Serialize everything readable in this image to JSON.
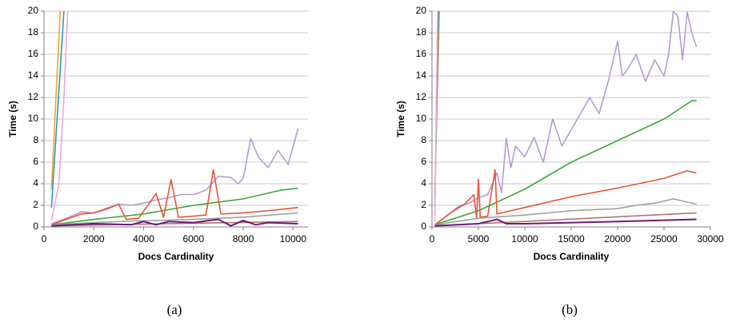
{
  "chart_data": [
    {
      "type": "line",
      "caption": "(a)",
      "x_label": "Docs Cardinality",
      "y_label": "Time (s)",
      "xlim": [
        0,
        10600
      ],
      "ylim": [
        0,
        20
      ],
      "xticks": [
        0,
        2000,
        4000,
        6000,
        8000,
        10000
      ],
      "yticks": [
        0,
        2,
        4,
        6,
        8,
        10,
        12,
        14,
        16,
        18,
        20
      ],
      "grid": true,
      "series": [
        {
          "color": "#f5a623",
          "x": [
            300,
            650
          ],
          "values": [
            3.5,
            20
          ]
        },
        {
          "color": "#2a9bc4",
          "x": [
            300,
            800
          ],
          "values": [
            1.8,
            20
          ]
        },
        {
          "color": "#f2a7d8",
          "x": [
            300,
            600,
            800,
            950
          ],
          "values": [
            0.6,
            4,
            12,
            20
          ]
        },
        {
          "color": "#b89ad6",
          "x": [
            300,
            1000,
            1500,
            2000,
            2500,
            3000,
            3500,
            4000,
            4500,
            5000,
            5500,
            6000,
            6500,
            7000,
            7500,
            7800,
            8000,
            8300,
            8600,
            9000,
            9400,
            9800,
            10200
          ],
          "values": [
            0.3,
            0.9,
            1.4,
            1.3,
            1.6,
            2.1,
            2.0,
            2.2,
            2.5,
            2.7,
            3.0,
            3.0,
            3.4,
            4.7,
            4.6,
            4.0,
            4.5,
            8.2,
            6.5,
            5.5,
            7.1,
            5.8,
            9.1
          ]
        },
        {
          "color": "#3aaa35",
          "x": [
            300,
            2000,
            4000,
            6000,
            8000,
            9500,
            10200
          ],
          "values": [
            0.2,
            0.7,
            1.2,
            2.0,
            2.6,
            3.4,
            3.6
          ]
        },
        {
          "color": "#e6553a",
          "x": [
            300,
            1500,
            2000,
            2500,
            3000,
            3300,
            3800,
            4500,
            4800,
            5100,
            5400,
            6000,
            6500,
            6800,
            7100,
            8000,
            9000,
            10200
          ],
          "values": [
            0.2,
            1.2,
            1.3,
            1.7,
            2.1,
            0.7,
            0.8,
            3.1,
            0.9,
            4.4,
            0.9,
            1.0,
            1.1,
            5.3,
            1.2,
            1.3,
            1.5,
            1.8
          ]
        },
        {
          "color": "#a0a0a0",
          "x": [
            300,
            3000,
            6000,
            8000,
            10200
          ],
          "values": [
            0.2,
            0.5,
            0.7,
            0.9,
            1.3
          ]
        },
        {
          "color": "#b5736a",
          "x": [
            300,
            5000,
            10200
          ],
          "values": [
            0.1,
            0.3,
            0.5
          ]
        },
        {
          "color": "#6a1b7a",
          "x": [
            300,
            2000,
            3500,
            4000,
            4500,
            5000,
            6000,
            7000,
            7500,
            8000,
            8500,
            9000,
            10200
          ],
          "values": [
            0.1,
            0.3,
            0.2,
            0.5,
            0.2,
            0.5,
            0.4,
            0.7,
            0.1,
            0.6,
            0.2,
            0.4,
            0.3
          ]
        }
      ]
    },
    {
      "type": "line",
      "caption": "(b)",
      "x_label": "Docs Cardinality",
      "y_label": "Time (s)",
      "xlim": [
        0,
        30000
      ],
      "ylim": [
        0,
        20
      ],
      "xticks": [
        0,
        5000,
        10000,
        15000,
        20000,
        25000,
        30000
      ],
      "yticks": [
        0,
        2,
        4,
        6,
        8,
        10,
        12,
        14,
        16,
        18,
        20
      ],
      "grid": true,
      "series": [
        {
          "color": "#f5a623",
          "x": [
            300,
            800
          ],
          "values": [
            3,
            20
          ]
        },
        {
          "color": "#2a9bc4",
          "x": [
            300,
            700
          ],
          "values": [
            1.8,
            20
          ]
        },
        {
          "color": "#f2a7d8",
          "x": [
            300,
            600
          ],
          "values": [
            0.5,
            20
          ]
        },
        {
          "color": "#b89ad6",
          "x": [
            500,
            2000,
            3000,
            4000,
            5000,
            6000,
            7000,
            7500,
            8000,
            8500,
            9000,
            10000,
            11000,
            12000,
            13000,
            14000,
            15000,
            16000,
            17000,
            18000,
            19000,
            20000,
            20500,
            21000,
            22000,
            23000,
            24000,
            25000,
            25500,
            26000,
            26500,
            27000,
            27500,
            28000,
            28500
          ],
          "values": [
            0.3,
            1.3,
            2.0,
            2.2,
            2.7,
            3.0,
            5.0,
            3.2,
            8.2,
            5.5,
            7.5,
            6.5,
            8.3,
            6.0,
            10.0,
            7.5,
            9.0,
            10.5,
            12.0,
            10.5,
            13.5,
            17.2,
            14.0,
            14.5,
            16.0,
            13.5,
            15.5,
            14.0,
            16.0,
            20.0,
            19.5,
            15.5,
            19.9,
            18.0,
            16.7
          ]
        },
        {
          "color": "#3aaa35",
          "x": [
            300,
            5000,
            10000,
            15000,
            20000,
            25000,
            28000,
            28500
          ],
          "values": [
            0.2,
            1.5,
            3.5,
            6.0,
            8.0,
            10.0,
            11.7,
            11.7
          ]
        },
        {
          "color": "#e6553a",
          "x": [
            300,
            2000,
            3500,
            4500,
            4800,
            5000,
            5200,
            6000,
            6800,
            7000,
            10000,
            15000,
            20000,
            25000,
            27500,
            28500
          ],
          "values": [
            0.2,
            1.3,
            2.1,
            3.0,
            0.8,
            4.4,
            0.9,
            1.0,
            5.3,
            1.2,
            1.8,
            2.8,
            3.6,
            4.5,
            5.2,
            5.0
          ]
        },
        {
          "color": "#a0a0a0",
          "x": [
            300,
            5000,
            10000,
            15000,
            20000,
            22000,
            24000,
            26000,
            28500
          ],
          "values": [
            0.2,
            0.8,
            1.1,
            1.5,
            1.7,
            2.0,
            2.2,
            2.6,
            2.1
          ]
        },
        {
          "color": "#b5736a",
          "x": [
            300,
            28500
          ],
          "values": [
            0.1,
            1.3
          ]
        },
        {
          "color": "#6a1b7a",
          "x": [
            300,
            5000,
            7000,
            8000,
            10000,
            20000,
            28500
          ],
          "values": [
            0.1,
            0.3,
            0.7,
            0.3,
            0.3,
            0.5,
            0.7
          ]
        }
      ]
    }
  ]
}
